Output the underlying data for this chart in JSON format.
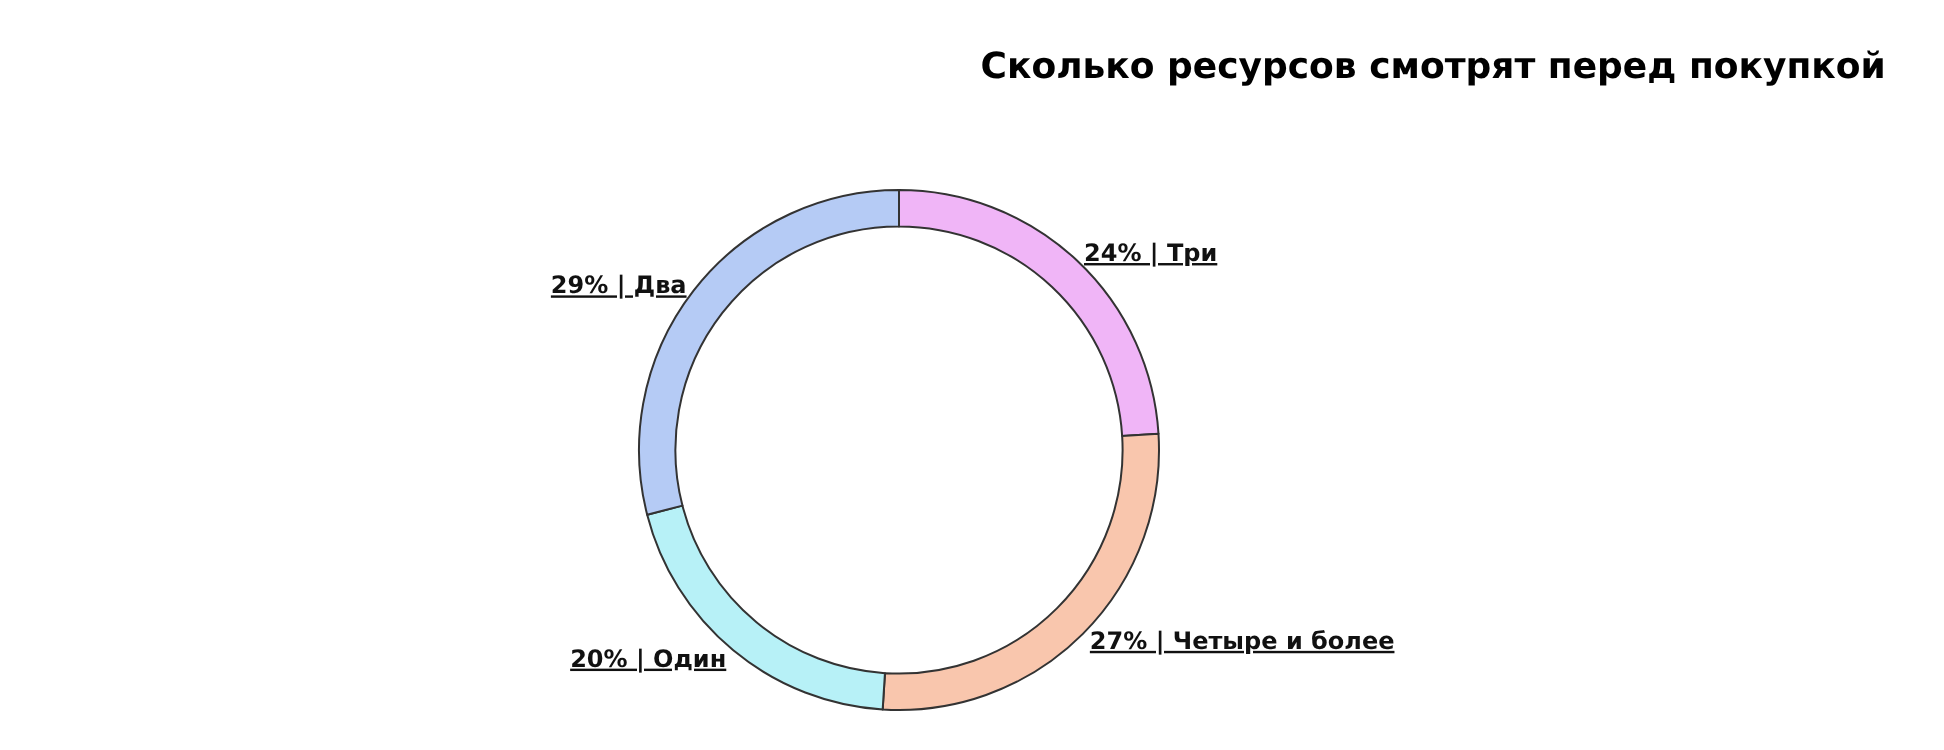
{
  "chart_data": {
    "type": "donut",
    "title": "Сколько ресурсов смотрят перед покупкой",
    "categories": [
      "Три",
      "Четыре и более",
      "Один",
      "Два"
    ],
    "values": [
      24,
      27,
      20,
      29
    ],
    "value_labels": [
      "24% |",
      "27% |",
      "20% |",
      "29% |"
    ],
    "colors": [
      "#f0b5f7",
      "#f9c6ad",
      "#b7f1f7",
      "#b5cbf5"
    ],
    "legend": false
  }
}
